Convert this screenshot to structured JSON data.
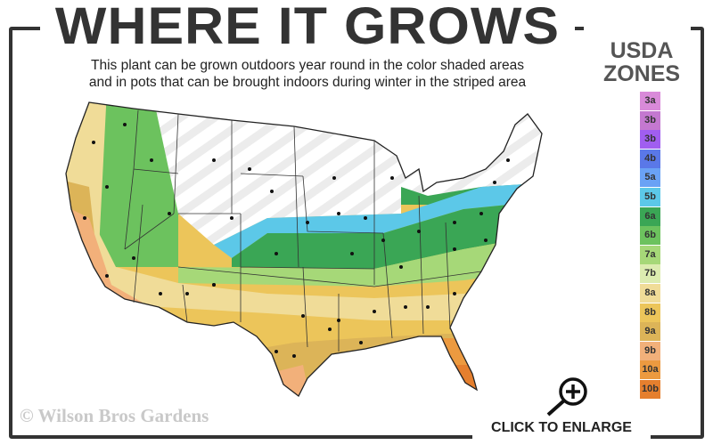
{
  "header": {
    "title": "WHERE IT GROWS",
    "subtitle_line1": "This plant can be grown outdoors year round in the color shaded areas",
    "subtitle_line2": "and in pots that can be brought indoors during winter in the striped area"
  },
  "legend": {
    "title_line1": "USDA",
    "title_line2": "ZONES",
    "zones": [
      {
        "label": "3a",
        "color": "#d98ad9"
      },
      {
        "label": "3b",
        "color": "#c478d0"
      },
      {
        "label": "3b",
        "color": "#a05ef0"
      },
      {
        "label": "4b",
        "color": "#5a78e8"
      },
      {
        "label": "5a",
        "color": "#6aa2f5"
      },
      {
        "label": "5b",
        "color": "#5cc8e8"
      },
      {
        "label": "6a",
        "color": "#3aa655"
      },
      {
        "label": "6b",
        "color": "#6cc25e"
      },
      {
        "label": "7a",
        "color": "#a6d878"
      },
      {
        "label": "7b",
        "color": "#dcecb0"
      },
      {
        "label": "8a",
        "color": "#f0dc98"
      },
      {
        "label": "8b",
        "color": "#ecc55a"
      },
      {
        "label": "9a",
        "color": "#dcb458"
      },
      {
        "label": "9b",
        "color": "#f2b07a"
      },
      {
        "label": "10a",
        "color": "#ec9a40"
      },
      {
        "label": "10b",
        "color": "#e57f2e"
      }
    ]
  },
  "footer": {
    "copyright": "© Wilson Bros Gardens",
    "enlarge_label": "CLICK TO ENLARGE",
    "enlarge_icon": "magnifier-plus-icon"
  }
}
